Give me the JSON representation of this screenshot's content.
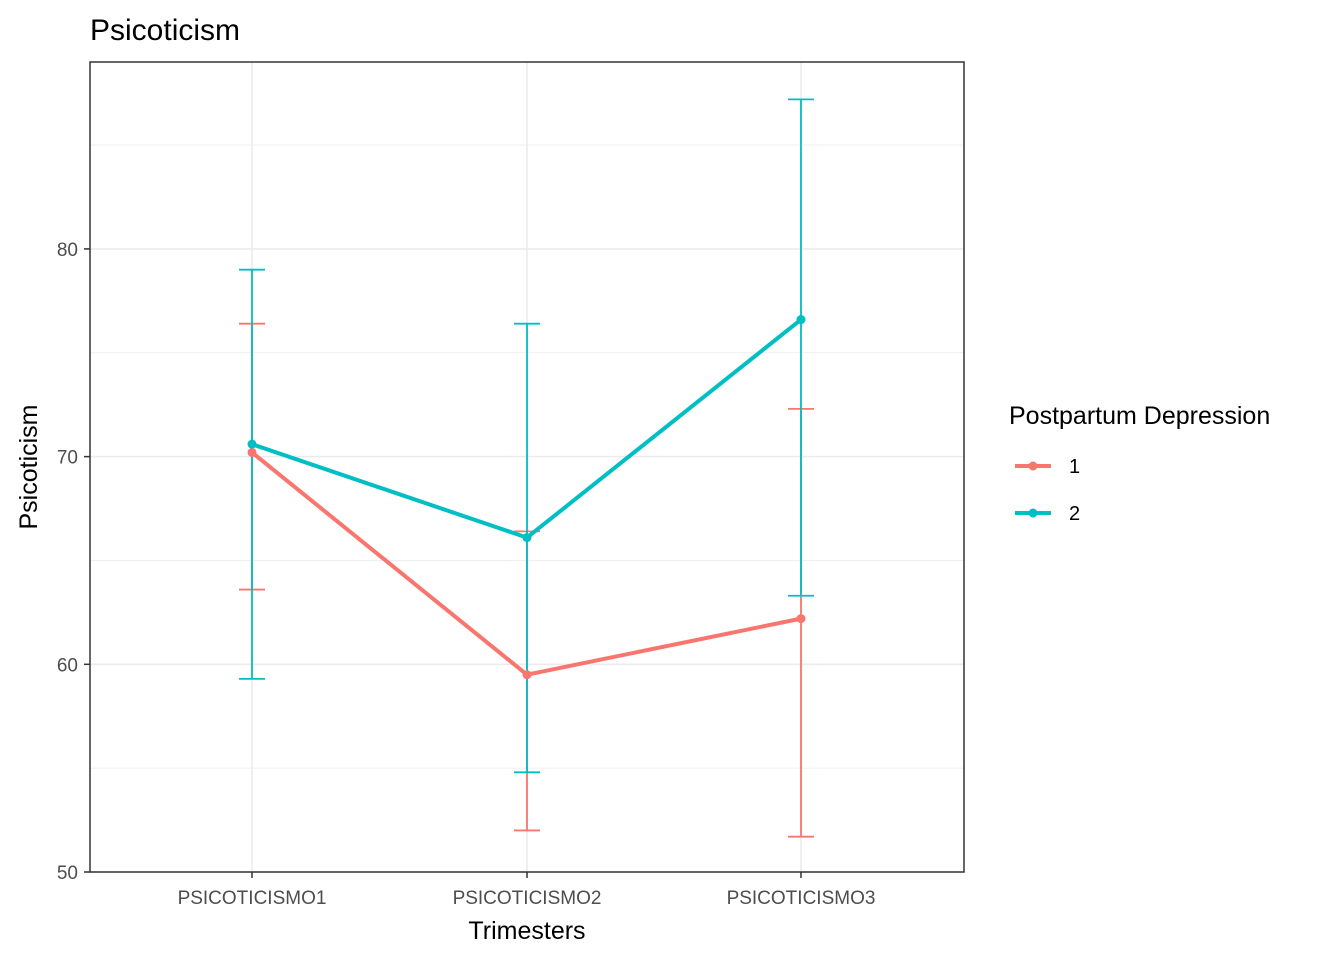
{
  "chart_data": {
    "type": "line",
    "title": "Psicoticism",
    "xlabel": "Trimesters",
    "ylabel": "Psicoticism",
    "categories": [
      "PSICOTICISMO1",
      "PSICOTICISMO2",
      "PSICOTICISMO3"
    ],
    "ylim": [
      50,
      89
    ],
    "yticks": [
      50,
      60,
      70,
      80
    ],
    "grid": true,
    "legend": {
      "title": "Postpartum Depression",
      "placement": "right"
    },
    "series": [
      {
        "name": "1",
        "color": "#F8766D",
        "values": [
          70.2,
          59.5,
          62.2
        ],
        "error_low": [
          63.6,
          52.0,
          51.7
        ],
        "error_high": [
          76.4,
          66.4,
          72.3
        ]
      },
      {
        "name": "2",
        "color": "#00BFC4",
        "values": [
          70.6,
          66.1,
          76.6
        ],
        "error_low": [
          59.3,
          54.8,
          63.3
        ],
        "error_high": [
          79.0,
          76.4,
          87.2
        ]
      }
    ]
  }
}
